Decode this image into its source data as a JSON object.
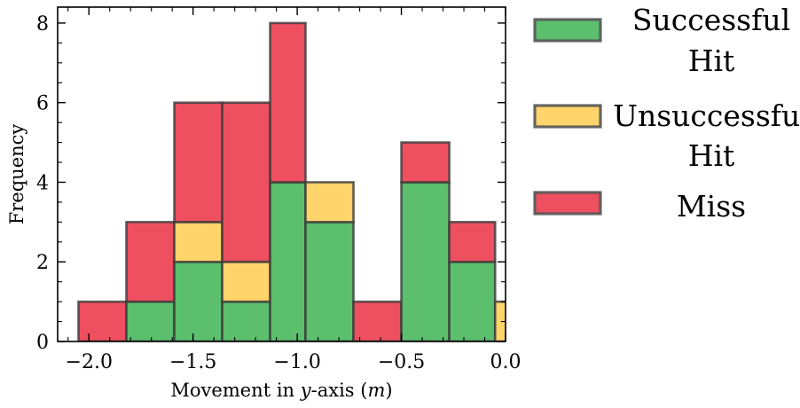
{
  "chart_data": {
    "type": "bar",
    "stacked": true,
    "title": "",
    "xlabel_parts": [
      "Movement in ",
      "y",
      "-axis (",
      "m",
      ")"
    ],
    "ylabel": "Frequency",
    "xlim": [
      -2.15,
      0.0
    ],
    "ylim": [
      0,
      8.4
    ],
    "xticks": [
      -2.0,
      -1.5,
      -1.0,
      -0.5,
      0.0
    ],
    "xtick_labels": [
      "−2.0",
      "−1.5",
      "−1.0",
      "−0.5",
      "0.0"
    ],
    "yticks": [
      0,
      2,
      4,
      6,
      8
    ],
    "ytick_labels": [
      "0",
      "2",
      "4",
      "6",
      "8"
    ],
    "bin_edges": [
      -2.05,
      -1.82,
      -1.59,
      -1.36,
      -1.13,
      -0.96,
      -0.73,
      -0.5,
      -0.27,
      -0.05,
      0.1
    ],
    "series": [
      {
        "name": "Successful Hit",
        "color": "#5bbf6e",
        "values": [
          0,
          1,
          2,
          1,
          4,
          3,
          0,
          4,
          2,
          0
        ]
      },
      {
        "name": "Unsuccessful Hit",
        "color": "#ffd56b",
        "values": [
          0,
          0,
          1,
          1,
          0,
          1,
          0,
          0,
          0,
          1
        ]
      },
      {
        "name": "Miss",
        "color": "#ee5060",
        "values": [
          1,
          2,
          3,
          4,
          4,
          0,
          1,
          1,
          1,
          0
        ]
      }
    ],
    "legend": {
      "placement": "right, outside plot",
      "entries": [
        {
          "lines": [
            "Successful",
            "Hit"
          ],
          "color": "#5bbf6e"
        },
        {
          "lines": [
            "Unsuccessful",
            "Hit"
          ],
          "color": "#ffd56b"
        },
        {
          "lines": [
            "Miss"
          ],
          "color": "#ee5060"
        }
      ]
    },
    "grid": false,
    "edge_color": "#3a3a3a"
  }
}
